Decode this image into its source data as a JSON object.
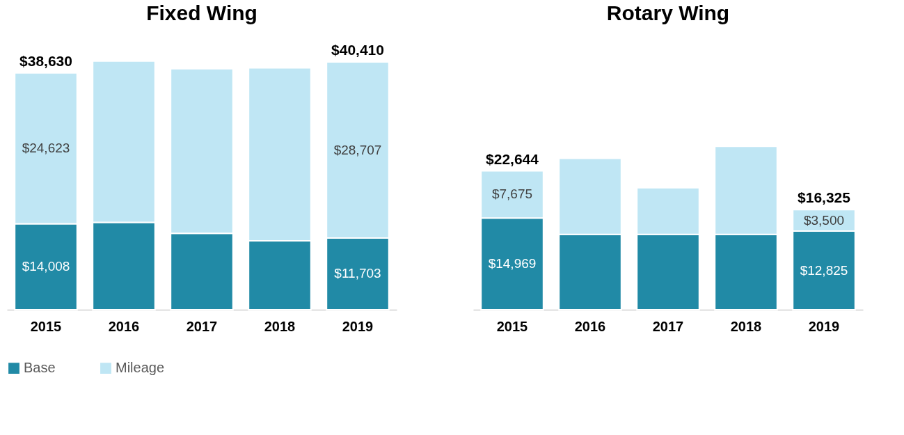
{
  "chart_data": [
    {
      "type": "bar",
      "title": "Fixed Wing",
      "categories": [
        "2015",
        "2016",
        "2017",
        "2018",
        "2019"
      ],
      "stacked": true,
      "legend": "bottom",
      "grid": false,
      "tick_labels": "x",
      "series": [
        {
          "name": "Base",
          "color": "#218aa6",
          "values": [
            14008,
            14250,
            12470,
            11230,
            11703
          ],
          "value_labels": [
            "$14,008",
            null,
            null,
            null,
            "$11,703"
          ]
        },
        {
          "name": "Mileage",
          "color": "#bfe6f4",
          "values": [
            24623,
            26300,
            26850,
            28220,
            28707
          ],
          "value_labels": [
            "$24,623",
            null,
            null,
            null,
            "$28,707"
          ]
        }
      ],
      "totals": [
        "$38,630",
        null,
        null,
        null,
        "$40,410"
      ]
    },
    {
      "type": "bar",
      "title": "Rotary Wing",
      "categories": [
        "2015",
        "2016",
        "2017",
        "2018",
        "2019"
      ],
      "stacked": true,
      "grid": false,
      "tick_labels": "x",
      "series": [
        {
          "name": "Base",
          "color": "#218aa6",
          "values": [
            14969,
            12300,
            12300,
            12300,
            12825
          ],
          "value_labels": [
            "$14,969",
            null,
            null,
            null,
            "$12,825"
          ]
        },
        {
          "name": "Mileage",
          "color": "#bfe6f4",
          "values": [
            7675,
            12400,
            7600,
            14350,
            3500
          ],
          "value_labels": [
            "$7,675",
            null,
            null,
            null,
            "$3,500"
          ]
        }
      ],
      "totals": [
        "$22,644",
        null,
        null,
        null,
        "$16,325"
      ]
    }
  ]
}
